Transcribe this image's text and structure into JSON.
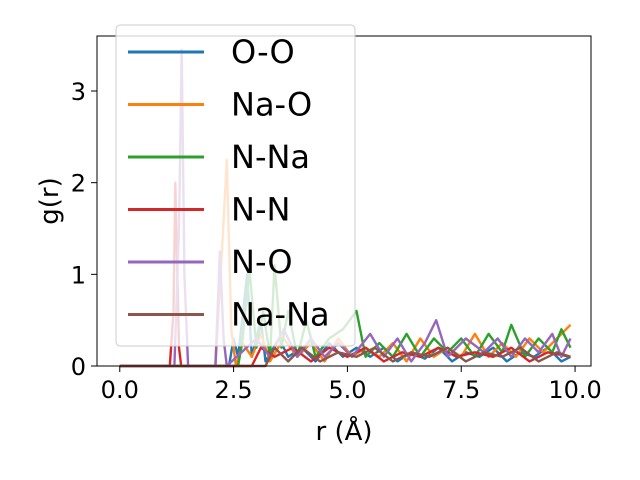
{
  "chart_data": {
    "type": "line",
    "title": "",
    "xlabel": "r (Å)",
    "ylabel": "g(r)",
    "xlim": [
      -0.5,
      10.35
    ],
    "ylim": [
      0,
      3.6
    ],
    "xticks": [
      0.0,
      2.5,
      5.0,
      7.5,
      10.0
    ],
    "xtick_labels": [
      "0.0",
      "2.5",
      "5.0",
      "7.5",
      "10.0"
    ],
    "yticks": [
      0,
      1,
      2,
      3
    ],
    "ytick_labels": [
      "0",
      "1",
      "2",
      "3"
    ],
    "grid": false,
    "legend_position": "top-left",
    "series": [
      {
        "name": "O-O",
        "color": "#1f77b4",
        "points": [
          [
            0,
            0
          ],
          [
            2.4,
            0
          ],
          [
            2.5,
            0.3
          ],
          [
            2.6,
            0.1
          ],
          [
            2.8,
            1.0
          ],
          [
            2.9,
            0.1
          ],
          [
            3.1,
            0.5
          ],
          [
            3.2,
            0.05
          ],
          [
            3.5,
            0.3
          ],
          [
            3.7,
            0.1
          ],
          [
            4.0,
            0.2
          ],
          [
            4.3,
            0.05
          ],
          [
            4.6,
            0.25
          ],
          [
            4.9,
            0.1
          ],
          [
            5.2,
            0.2
          ],
          [
            5.5,
            0.1
          ],
          [
            5.8,
            0.2
          ],
          [
            6.1,
            0.05
          ],
          [
            6.4,
            0.15
          ],
          [
            6.7,
            0.08
          ],
          [
            7.0,
            0.2
          ],
          [
            7.3,
            0.05
          ],
          [
            7.6,
            0.15
          ],
          [
            7.9,
            0.1
          ],
          [
            8.2,
            0.2
          ],
          [
            8.5,
            0.05
          ],
          [
            8.8,
            0.15
          ],
          [
            9.1,
            0.1
          ],
          [
            9.4,
            0.2
          ],
          [
            9.7,
            0.05
          ],
          [
            9.9,
            0.1
          ]
        ]
      },
      {
        "name": "Na-O",
        "color": "#ff7f0e",
        "points": [
          [
            0,
            0
          ],
          [
            2.1,
            0
          ],
          [
            2.25,
            1.3
          ],
          [
            2.35,
            2.25
          ],
          [
            2.45,
            0.4
          ],
          [
            2.55,
            0
          ],
          [
            2.7,
            0.25
          ],
          [
            2.9,
            0.1
          ],
          [
            3.1,
            0.35
          ],
          [
            3.3,
            0.05
          ],
          [
            3.6,
            0.3
          ],
          [
            3.9,
            0.1
          ],
          [
            4.2,
            0.25
          ],
          [
            4.5,
            0.05
          ],
          [
            4.8,
            0.3
          ],
          [
            5.1,
            0.1
          ],
          [
            5.4,
            0.2
          ],
          [
            5.7,
            0.1
          ],
          [
            6.0,
            0.25
          ],
          [
            6.3,
            0.05
          ],
          [
            6.6,
            0.3
          ],
          [
            6.9,
            0.1
          ],
          [
            7.2,
            0.2
          ],
          [
            7.5,
            0.1
          ],
          [
            7.8,
            0.35
          ],
          [
            8.1,
            0.1
          ],
          [
            8.4,
            0.25
          ],
          [
            8.7,
            0.1
          ],
          [
            9.0,
            0.3
          ],
          [
            9.3,
            0.15
          ],
          [
            9.6,
            0.3
          ],
          [
            9.9,
            0.45
          ]
        ]
      },
      {
        "name": "N-Na",
        "color": "#2ca02c",
        "points": [
          [
            0,
            0
          ],
          [
            2.6,
            0
          ],
          [
            2.7,
            0.3
          ],
          [
            2.85,
            1.05
          ],
          [
            3.0,
            0.2
          ],
          [
            3.15,
            0.6
          ],
          [
            3.3,
            0.1
          ],
          [
            3.4,
            1.1
          ],
          [
            3.55,
            0.2
          ],
          [
            3.7,
            0.6
          ],
          [
            3.9,
            0.1
          ],
          [
            4.1,
            0.5
          ],
          [
            4.3,
            0.1
          ],
          [
            4.6,
            0.3
          ],
          [
            4.9,
            0.4
          ],
          [
            5.2,
            0.6
          ],
          [
            5.4,
            0.1
          ],
          [
            5.7,
            0.25
          ],
          [
            6.0,
            0.1
          ],
          [
            6.3,
            0.35
          ],
          [
            6.6,
            0.1
          ],
          [
            6.9,
            0.3
          ],
          [
            7.2,
            0.15
          ],
          [
            7.5,
            0.3
          ],
          [
            7.8,
            0.1
          ],
          [
            8.1,
            0.35
          ],
          [
            8.4,
            0.15
          ],
          [
            8.6,
            0.45
          ],
          [
            8.9,
            0.1
          ],
          [
            9.2,
            0.3
          ],
          [
            9.5,
            0.15
          ],
          [
            9.7,
            0.4
          ],
          [
            9.9,
            0.2
          ]
        ]
      },
      {
        "name": "N-N",
        "color": "#d62728",
        "points": [
          [
            0,
            0
          ],
          [
            1.1,
            0
          ],
          [
            1.18,
            0.6
          ],
          [
            1.22,
            2.0
          ],
          [
            1.3,
            0.2
          ],
          [
            1.35,
            0
          ],
          [
            2.9,
            0
          ],
          [
            3.1,
            0.2
          ],
          [
            3.4,
            0.1
          ],
          [
            3.8,
            0.2
          ],
          [
            4.2,
            0.05
          ],
          [
            4.6,
            0.2
          ],
          [
            5.0,
            0.1
          ],
          [
            5.4,
            0.2
          ],
          [
            5.8,
            0.05
          ],
          [
            6.2,
            0.15
          ],
          [
            6.6,
            0.1
          ],
          [
            7.0,
            0.2
          ],
          [
            7.4,
            0.1
          ],
          [
            7.8,
            0.15
          ],
          [
            8.2,
            0.1
          ],
          [
            8.6,
            0.2
          ],
          [
            9.0,
            0.05
          ],
          [
            9.4,
            0.15
          ],
          [
            9.9,
            0.1
          ]
        ]
      },
      {
        "name": "N-O",
        "color": "#9467bd",
        "points": [
          [
            0,
            0
          ],
          [
            1.2,
            0
          ],
          [
            1.3,
            1.5
          ],
          [
            1.36,
            3.45
          ],
          [
            1.42,
            1.0
          ],
          [
            1.5,
            0
          ],
          [
            2.1,
            0
          ],
          [
            2.2,
            1.25
          ],
          [
            2.28,
            0.3
          ],
          [
            2.35,
            0
          ],
          [
            3.0,
            0.3
          ],
          [
            3.3,
            0.1
          ],
          [
            3.6,
            0.4
          ],
          [
            3.9,
            0.1
          ],
          [
            4.2,
            0.3
          ],
          [
            4.5,
            0.1
          ],
          [
            4.8,
            0.25
          ],
          [
            5.1,
            0.1
          ],
          [
            5.5,
            0.35
          ],
          [
            5.8,
            0.1
          ],
          [
            6.1,
            0.3
          ],
          [
            6.4,
            0.05
          ],
          [
            6.7,
            0.25
          ],
          [
            6.95,
            0.5
          ],
          [
            7.2,
            0.1
          ],
          [
            7.6,
            0.3
          ],
          [
            8.0,
            0.15
          ],
          [
            8.3,
            0.3
          ],
          [
            8.6,
            0.1
          ],
          [
            8.9,
            0.3
          ],
          [
            9.2,
            0.15
          ],
          [
            9.5,
            0.35
          ],
          [
            9.7,
            0.1
          ],
          [
            9.9,
            0.3
          ]
        ]
      },
      {
        "name": "Na-Na",
        "color": "#8c564b",
        "points": [
          [
            0,
            0
          ],
          [
            3.2,
            0
          ],
          [
            3.4,
            0.2
          ],
          [
            3.7,
            0.05
          ],
          [
            4.0,
            0.2
          ],
          [
            4.4,
            0.05
          ],
          [
            4.8,
            0.15
          ],
          [
            5.2,
            0.1
          ],
          [
            5.6,
            0.2
          ],
          [
            6.0,
            0.05
          ],
          [
            6.4,
            0.15
          ],
          [
            6.8,
            0.1
          ],
          [
            7.2,
            0.2
          ],
          [
            7.6,
            0.05
          ],
          [
            8.0,
            0.15
          ],
          [
            8.4,
            0.1
          ],
          [
            8.8,
            0.2
          ],
          [
            9.2,
            0.05
          ],
          [
            9.6,
            0.15
          ],
          [
            9.9,
            0.1
          ]
        ]
      }
    ]
  }
}
